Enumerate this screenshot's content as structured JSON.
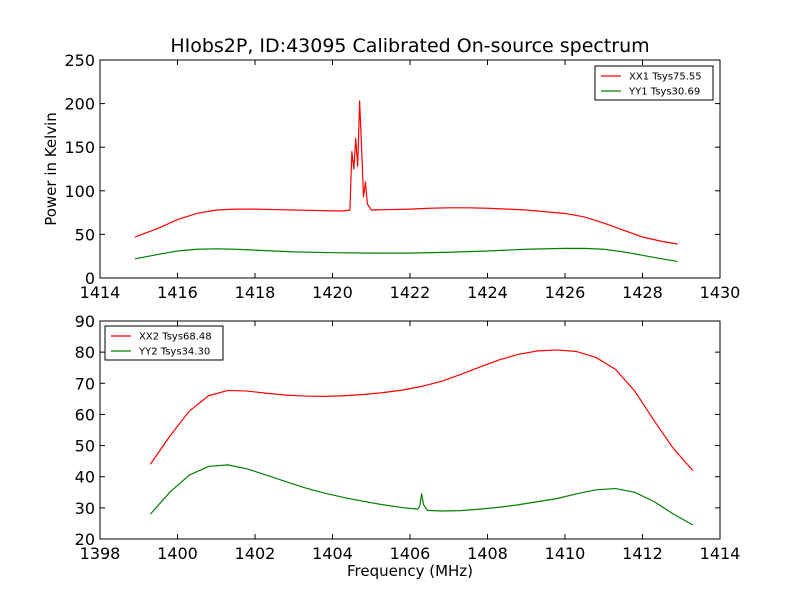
{
  "chart_data": [
    {
      "type": "line",
      "title": "HIobs2P, ID:43095 Calibrated On-source spectrum",
      "xlabel": "",
      "ylabel": "Power in Kelvin",
      "xlim": [
        1414,
        1430
      ],
      "ylim": [
        0,
        250
      ],
      "xticks": [
        1414,
        1416,
        1418,
        1420,
        1422,
        1424,
        1426,
        1428,
        1430
      ],
      "yticks": [
        0,
        50,
        100,
        150,
        200,
        250
      ],
      "grid": false,
      "legend_position": "top-right",
      "series": [
        {
          "name": "XX1 Tsys75.55",
          "color": "#ff0000",
          "x": [
            1414.9,
            1415.5,
            1416.0,
            1416.5,
            1417.0,
            1417.5,
            1418.0,
            1418.5,
            1419.0,
            1419.5,
            1420.0,
            1420.3,
            1420.45,
            1420.5,
            1420.55,
            1420.6,
            1420.65,
            1420.7,
            1420.75,
            1420.8,
            1420.85,
            1420.9,
            1421.0,
            1421.5,
            1422.0,
            1422.5,
            1423.0,
            1423.5,
            1424.0,
            1424.5,
            1425.0,
            1425.5,
            1426.0,
            1426.5,
            1427.0,
            1427.5,
            1428.0,
            1428.5,
            1428.9
          ],
          "y": [
            47,
            57,
            67,
            74,
            78,
            79,
            79,
            78.5,
            78,
            77.5,
            77,
            77,
            78,
            145,
            125,
            160,
            128,
            203,
            150,
            93,
            110,
            85,
            78,
            78.5,
            79,
            80,
            80.5,
            80.5,
            80,
            79,
            78,
            76,
            74,
            70,
            63,
            55,
            47,
            42,
            39
          ]
        },
        {
          "name": "YY1 Tsys30.69",
          "color": "#008000",
          "x": [
            1414.9,
            1415.5,
            1416.0,
            1416.5,
            1417.0,
            1417.5,
            1418.0,
            1419.0,
            1420.0,
            1421.0,
            1422.0,
            1423.0,
            1424.0,
            1425.0,
            1426.0,
            1426.5,
            1427.0,
            1427.5,
            1428.0,
            1428.5,
            1428.9
          ],
          "y": [
            22,
            27,
            31,
            33,
            33.5,
            33,
            32,
            30,
            29,
            28.5,
            28.5,
            29.5,
            31,
            33,
            34,
            34,
            33,
            30,
            26,
            22,
            19
          ]
        }
      ]
    },
    {
      "type": "line",
      "title": "",
      "xlabel": "Frequency (MHz)",
      "ylabel": "",
      "xlim": [
        1398,
        1414
      ],
      "ylim": [
        20,
        90
      ],
      "xticks": [
        1398,
        1400,
        1402,
        1404,
        1406,
        1408,
        1410,
        1412,
        1414
      ],
      "yticks": [
        20,
        30,
        40,
        50,
        60,
        70,
        80,
        90
      ],
      "grid": false,
      "legend_position": "top-left",
      "series": [
        {
          "name": "XX2 Tsys68.48",
          "color": "#ff0000",
          "x": [
            1399.3,
            1399.8,
            1400.3,
            1400.8,
            1401.3,
            1401.8,
            1402.3,
            1402.8,
            1403.3,
            1403.8,
            1404.3,
            1404.8,
            1405.3,
            1405.8,
            1406.3,
            1406.8,
            1407.3,
            1407.8,
            1408.3,
            1408.8,
            1409.3,
            1409.8,
            1410.3,
            1410.8,
            1411.3,
            1411.8,
            1412.3,
            1412.8,
            1413.3
          ],
          "y": [
            44,
            53,
            61,
            66,
            67.7,
            67.5,
            66.8,
            66.2,
            65.9,
            65.8,
            66,
            66.4,
            67,
            67.8,
            69,
            70.6,
            72.8,
            75.2,
            77.5,
            79.3,
            80.4,
            80.7,
            80.2,
            78.3,
            74.5,
            67.5,
            58,
            49,
            42
          ]
        },
        {
          "name": "YY2 Tsys34.30",
          "color": "#008000",
          "x": [
            1399.3,
            1399.8,
            1400.3,
            1400.8,
            1401.3,
            1401.8,
            1402.3,
            1402.8,
            1403.3,
            1403.8,
            1404.3,
            1404.8,
            1405.3,
            1405.8,
            1406.2,
            1406.25,
            1406.3,
            1406.35,
            1406.45,
            1406.8,
            1407.3,
            1407.8,
            1408.3,
            1408.8,
            1409.3,
            1409.8,
            1410.3,
            1410.8,
            1411.3,
            1411.8,
            1412.3,
            1412.8,
            1413.3
          ],
          "y": [
            28,
            35,
            40.5,
            43.3,
            43.8,
            42.5,
            40.5,
            38.4,
            36.4,
            34.7,
            33.3,
            32.1,
            31,
            30.1,
            29.6,
            30.5,
            34.5,
            31,
            29.2,
            29,
            29.1,
            29.6,
            30.2,
            31,
            32,
            33,
            34.5,
            35.8,
            36.2,
            35,
            32,
            28,
            24.5
          ]
        }
      ]
    }
  ]
}
